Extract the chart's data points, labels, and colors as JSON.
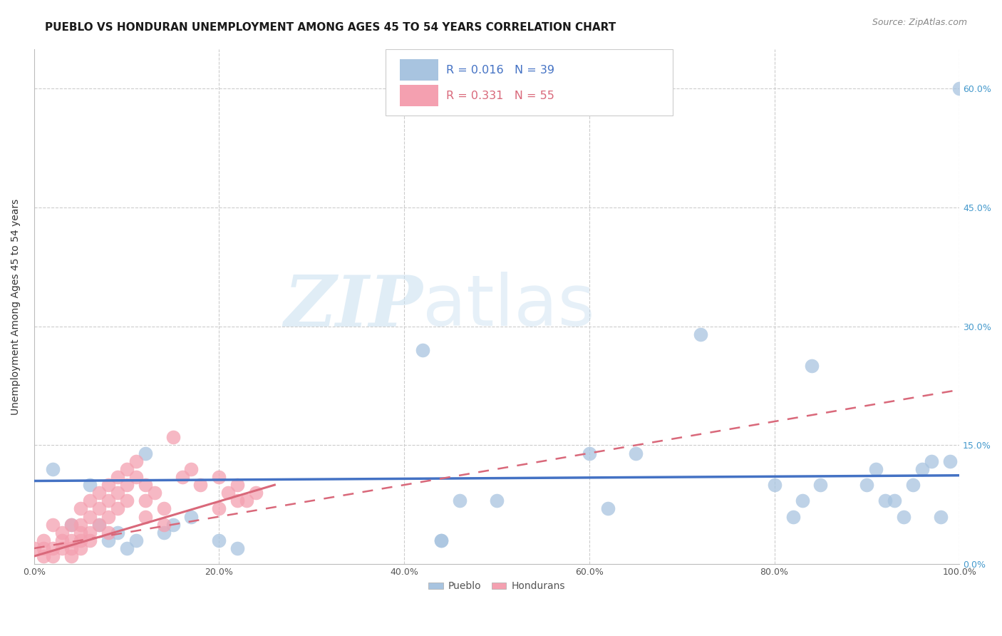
{
  "title": "PUEBLO VS HONDURAN UNEMPLOYMENT AMONG AGES 45 TO 54 YEARS CORRELATION CHART",
  "source": "Source: ZipAtlas.com",
  "ylabel": "Unemployment Among Ages 45 to 54 years",
  "xlim": [
    0.0,
    1.0
  ],
  "ylim": [
    0.0,
    0.65
  ],
  "pueblo_color": "#a8c4e0",
  "honduran_color": "#f4a0b0",
  "pueblo_line_color": "#4472c4",
  "honduran_line_color": "#d9687a",
  "legend_r_pueblo": "0.016",
  "legend_n_pueblo": "39",
  "legend_r_honduran": "0.331",
  "legend_n_honduran": "55",
  "pueblo_x": [
    0.02,
    0.04,
    0.06,
    0.07,
    0.08,
    0.09,
    0.1,
    0.11,
    0.12,
    0.14,
    0.17,
    0.2,
    0.22,
    0.42,
    0.44,
    0.44,
    0.46,
    0.5,
    0.62,
    0.65,
    0.72,
    0.8,
    0.82,
    0.83,
    0.84,
    0.85,
    0.9,
    0.91,
    0.92,
    0.93,
    0.94,
    0.95,
    0.96,
    0.97,
    0.98,
    0.99,
    1.0,
    0.15,
    0.6
  ],
  "pueblo_y": [
    0.12,
    0.05,
    0.1,
    0.05,
    0.03,
    0.04,
    0.02,
    0.03,
    0.14,
    0.04,
    0.06,
    0.03,
    0.02,
    0.27,
    0.03,
    0.03,
    0.08,
    0.08,
    0.07,
    0.14,
    0.29,
    0.1,
    0.06,
    0.08,
    0.25,
    0.1,
    0.1,
    0.12,
    0.08,
    0.08,
    0.06,
    0.1,
    0.12,
    0.13,
    0.06,
    0.13,
    0.6,
    0.05,
    0.14
  ],
  "honduran_x": [
    0.0,
    0.01,
    0.01,
    0.01,
    0.02,
    0.02,
    0.02,
    0.03,
    0.03,
    0.03,
    0.04,
    0.04,
    0.04,
    0.04,
    0.05,
    0.05,
    0.05,
    0.05,
    0.06,
    0.06,
    0.06,
    0.07,
    0.07,
    0.07,
    0.08,
    0.08,
    0.08,
    0.08,
    0.09,
    0.09,
    0.09,
    0.1,
    0.1,
    0.1,
    0.11,
    0.11,
    0.12,
    0.12,
    0.12,
    0.13,
    0.14,
    0.14,
    0.15,
    0.16,
    0.17,
    0.18,
    0.2,
    0.21,
    0.22,
    0.22,
    0.23,
    0.24,
    0.05,
    0.06,
    0.2
  ],
  "honduran_y": [
    0.02,
    0.03,
    0.02,
    0.01,
    0.05,
    0.02,
    0.01,
    0.04,
    0.03,
    0.02,
    0.03,
    0.02,
    0.01,
    0.05,
    0.07,
    0.05,
    0.03,
    0.02,
    0.08,
    0.06,
    0.04,
    0.09,
    0.07,
    0.05,
    0.1,
    0.08,
    0.06,
    0.04,
    0.11,
    0.09,
    0.07,
    0.12,
    0.1,
    0.08,
    0.13,
    0.11,
    0.1,
    0.08,
    0.06,
    0.09,
    0.07,
    0.05,
    0.16,
    0.11,
    0.12,
    0.1,
    0.11,
    0.09,
    0.1,
    0.08,
    0.08,
    0.09,
    0.04,
    0.03,
    0.07
  ],
  "watermark_zip": "ZIP",
  "watermark_atlas": "atlas",
  "background_color": "#ffffff",
  "grid_color": "#cccccc",
  "pueblo_trendline": [
    0.0,
    1.0,
    0.105,
    0.112
  ],
  "honduran_trendline_dashed": [
    0.0,
    1.0,
    0.02,
    0.22
  ],
  "honduran_trendline_solid": [
    0.0,
    0.26,
    0.01,
    0.1
  ]
}
